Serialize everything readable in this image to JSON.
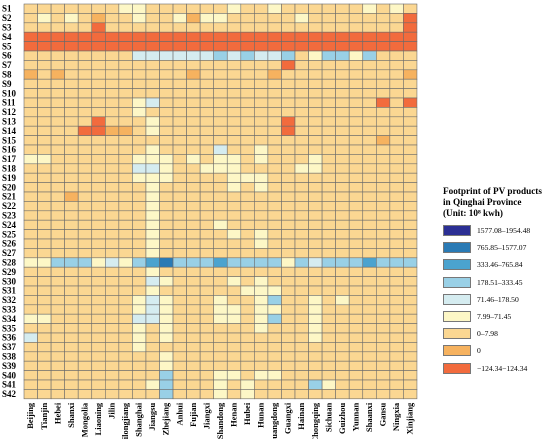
{
  "chart_data": {
    "type": "heatmap",
    "title": "Footprint of PV products in Qinghai Province (Unit: 10⁸ kwh)",
    "rows": [
      "S1",
      "S2",
      "S3",
      "S4",
      "S5",
      "S6",
      "S7",
      "S8",
      "S9",
      "S10",
      "S11",
      "S12",
      "S13",
      "S14",
      "S15",
      "S16",
      "S17",
      "S18",
      "S19",
      "S20",
      "S21",
      "S22",
      "S23",
      "S24",
      "S25",
      "S26",
      "S27",
      "S28",
      "S29",
      "S30",
      "S31",
      "S32",
      "S33",
      "S34",
      "S35",
      "S36",
      "S37",
      "S38",
      "S39",
      "S40",
      "S41",
      "S42"
    ],
    "columns": [
      "Beijing",
      "Tianjin",
      "Hebei",
      "Shanxi",
      "Inner Mongolia",
      "Liaoning",
      "Jilin",
      "Heilongjiang",
      "Shanghai",
      "Jiangsu",
      "Zhejiang",
      "Anhui",
      "Fujian",
      "Jiangxi",
      "Shandong",
      "Henan",
      "Hubei",
      "Hunan",
      "Guangdong",
      "Guangxi",
      "Hainan",
      "Chongqing",
      "Sichuan",
      "Guizhou",
      "Yunnan",
      "Shaanxi",
      "Gansu",
      "Ningxia",
      "Xinjiang"
    ],
    "legend": {
      "title_lines": [
        "Footprint of PV products",
        "in Qinghai Province",
        "(Unit: 10⁸ kwh)"
      ],
      "bins": [
        {
          "label": "1577.08–1954.48",
          "color": "#2b2f94"
        },
        {
          "label": "765.85–1577.07",
          "color": "#2a7ab5"
        },
        {
          "label": "333.46–765.84",
          "color": "#4ba3cf"
        },
        {
          "label": "178.51–333.45",
          "color": "#99d0e6"
        },
        {
          "label": "71.46–178.50",
          "color": "#d5ecf0"
        },
        {
          "label": "7.99–71.45",
          "color": "#fdf7c6"
        },
        {
          "label": "0–7.98",
          "color": "#fbd792"
        },
        {
          "label": "0",
          "color": "#f6b25f"
        },
        {
          "label": "−124.34−124.34",
          "color": "#f26b3d"
        }
      ]
    },
    "cell_classes": [
      "66666665566666656656666665656",
      "65656766566575566666566666668",
      "66666866666666666666666666668",
      "88888888888888888888888888888",
      "88888888888888888888888888888",
      "66666666444444343443653353666",
      "66666666666666666668666666666",
      "76766666666676666676666666667",
      "66666666666666666666666666666",
      "66666666666666666666666666666",
      "66666666546666666666666666868",
      "66666666566666666666666666666",
      "66666866656666666668666666666",
      "66668877656666666668666666666",
      "66666666666666666666666666766",
      "66666666656666466566666666666",
      "55666666555656556566656666666",
      "66666666445665556666556666666",
      "66666666555666655566666666666",
      "66666666656666656566666666666",
      "66676666656666666666666666666",
      "66666666656666666666666666666",
      "66666666656666666666666666666",
      "66666666656666566666666666666",
      "66666666656666656566666666666",
      "66666666656666666566666666666",
      "66666666656666666666666666666",
      "55333545321333233335343332333",
      "66666666656666666666666666666",
      "66666666645666656566666666666",
      "66666666656666665556666666666",
      "66666666545666566536656566666",
      "66666666545666556556656666666",
      "55666666445666556536656666666",
      "66666666565666666566656666666",
      "46666666565666666666656666666",
      "66666666566666666666666666666",
      "66666666665666666666666666666",
      "66666666665666666666666666666",
      "66666666663666556556666666666",
      "66666666653666565666635666666",
      "66666666663666565666666666666"
    ]
  }
}
